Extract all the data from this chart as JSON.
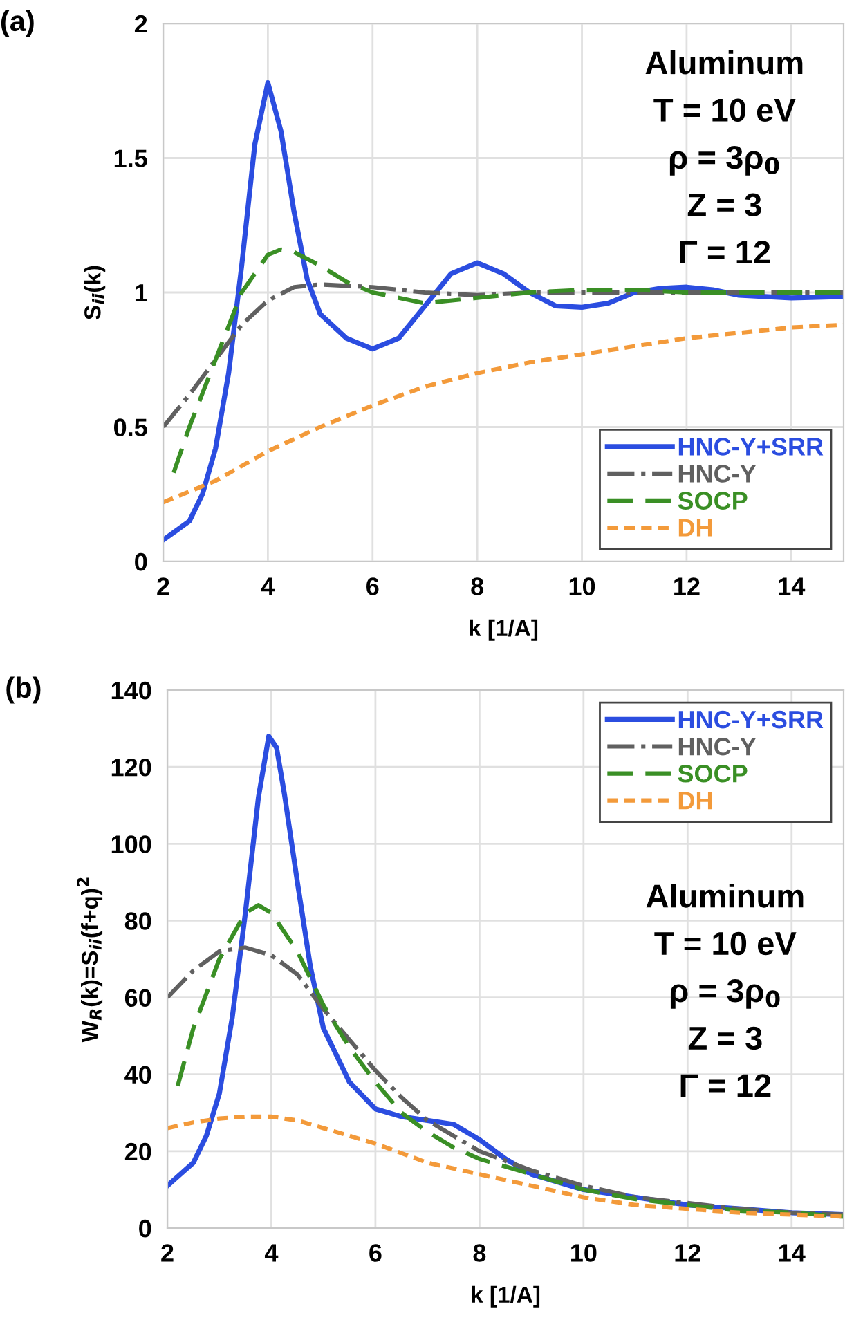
{
  "chart_data": [
    {
      "type": "line",
      "title": "(a)",
      "xlabel": "k [1/A]",
      "ylabel": "S$_{ii}$(k)",
      "xlim": [
        2,
        15
      ],
      "ylim": [
        0,
        2
      ],
      "xticks": [
        2,
        4,
        6,
        8,
        10,
        12,
        14
      ],
      "yticks": [
        0,
        0.5,
        1,
        1.5,
        2
      ],
      "grid": true,
      "legend": "bottom right",
      "annotations": [
        "Aluminum",
        "T = 10 eV",
        "ρ = 3ρ$_{0}$",
        "Z = 3",
        "Γ = 12"
      ],
      "series": [
        {
          "name": "HNC-Y+SRR",
          "color": "#2b4de0",
          "line_style": "solid",
          "x": [
            2,
            2.5,
            2.75,
            3,
            3.25,
            3.5,
            3.75,
            4,
            4.25,
            4.5,
            4.75,
            5,
            5.5,
            6,
            6.5,
            7,
            7.5,
            8,
            8.5,
            9,
            9.5,
            10,
            10.5,
            11,
            11.5,
            12,
            12.5,
            13,
            14,
            15
          ],
          "values": [
            0.08,
            0.15,
            0.25,
            0.42,
            0.7,
            1.1,
            1.55,
            1.78,
            1.6,
            1.3,
            1.05,
            0.92,
            0.83,
            0.79,
            0.83,
            0.95,
            1.07,
            1.11,
            1.07,
            1.0,
            0.95,
            0.945,
            0.96,
            1.0,
            1.015,
            1.02,
            1.01,
            0.99,
            0.98,
            0.985
          ]
        },
        {
          "name": "HNC-Y",
          "color": "#606060",
          "line_style": "dashdot",
          "x": [
            2,
            2.5,
            3,
            3.5,
            4,
            4.5,
            5,
            6,
            7,
            8,
            9,
            10,
            12,
            15
          ],
          "values": [
            0.5,
            0.62,
            0.75,
            0.88,
            0.97,
            1.02,
            1.03,
            1.02,
            1.0,
            0.99,
            1.0,
            1.0,
            1.0,
            1.0
          ]
        },
        {
          "name": "SOCP",
          "color": "#3a8f25",
          "line_style": "dashed",
          "x": [
            2.2,
            2.5,
            3,
            3.5,
            4,
            4.25,
            4.5,
            5,
            5.5,
            6,
            7,
            8,
            9,
            10,
            11,
            12,
            15
          ],
          "values": [
            0.33,
            0.5,
            0.75,
            1.0,
            1.14,
            1.16,
            1.15,
            1.1,
            1.04,
            1.0,
            0.96,
            0.98,
            1.0,
            1.01,
            1.01,
            1.0,
            1.0
          ]
        },
        {
          "name": "DH",
          "color": "#f39a3a",
          "line_style": "dotted",
          "x": [
            2,
            3,
            4,
            5,
            6,
            7,
            8,
            9,
            10,
            11,
            12,
            13,
            14,
            15
          ],
          "values": [
            0.22,
            0.3,
            0.41,
            0.5,
            0.58,
            0.65,
            0.7,
            0.74,
            0.77,
            0.8,
            0.83,
            0.85,
            0.87,
            0.88
          ]
        }
      ]
    },
    {
      "type": "line",
      "title": "(b)",
      "xlabel": "k [1/A]",
      "ylabel": "W$_{R}$(k)=S$_{ii}$(f+q)$^{2}$",
      "xlim": [
        2,
        15
      ],
      "ylim": [
        0,
        140
      ],
      "xticks": [
        2,
        4,
        6,
        8,
        10,
        12,
        14
      ],
      "yticks": [
        0,
        20,
        40,
        60,
        80,
        100,
        120,
        140
      ],
      "grid": true,
      "legend": "top right",
      "annotations": [
        "Aluminum",
        "T = 10 eV",
        "ρ = 3ρ$_{0}$",
        "Z = 3",
        "Γ = 12"
      ],
      "series": [
        {
          "name": "HNC-Y+SRR",
          "color": "#2b4de0",
          "line_style": "solid",
          "x": [
            2,
            2.5,
            2.75,
            3,
            3.25,
            3.5,
            3.75,
            3.95,
            4.1,
            4.25,
            4.5,
            4.75,
            5,
            5.5,
            6,
            6.5,
            7,
            7.5,
            8,
            8.5,
            9,
            10,
            11,
            12,
            13,
            14,
            15
          ],
          "values": [
            11,
            17,
            24,
            35,
            55,
            82,
            112,
            128,
            125,
            113,
            90,
            68,
            52,
            38,
            31,
            29,
            28,
            27,
            23,
            18,
            14,
            10,
            8,
            6,
            5,
            4,
            3.5
          ]
        },
        {
          "name": "HNC-Y",
          "color": "#606060",
          "line_style": "dashdot",
          "x": [
            2,
            2.5,
            3,
            3.5,
            4,
            4.5,
            5,
            5.5,
            6,
            6.5,
            7,
            8,
            9,
            10,
            11,
            12,
            13,
            14,
            15
          ],
          "values": [
            60,
            67,
            72,
            73,
            71,
            66,
            57,
            49,
            41,
            34,
            28,
            20,
            15,
            11,
            8,
            6.5,
            5,
            4,
            3.5
          ]
        },
        {
          "name": "SOCP",
          "color": "#3a8f25",
          "line_style": "dashed",
          "x": [
            2.2,
            2.5,
            3,
            3.5,
            3.75,
            4,
            4.5,
            5,
            5.5,
            6,
            6.5,
            7,
            7.5,
            8,
            9,
            10,
            11,
            12,
            13,
            14,
            15
          ],
          "values": [
            37,
            52,
            70,
            82,
            84,
            82,
            72,
            58,
            47,
            38,
            30,
            25,
            21,
            18,
            14,
            10,
            7.5,
            6,
            4.5,
            4,
            3
          ]
        },
        {
          "name": "DH",
          "color": "#f39a3a",
          "line_style": "dotted",
          "x": [
            2,
            2.5,
            3,
            3.5,
            4,
            4.5,
            5,
            5.5,
            6,
            7,
            8,
            9,
            10,
            11,
            12,
            13,
            14,
            15
          ],
          "values": [
            26,
            27.5,
            28.5,
            29,
            29,
            28,
            26,
            24,
            22,
            17,
            14,
            11,
            8,
            6,
            5,
            4,
            3.5,
            3
          ]
        }
      ]
    }
  ]
}
